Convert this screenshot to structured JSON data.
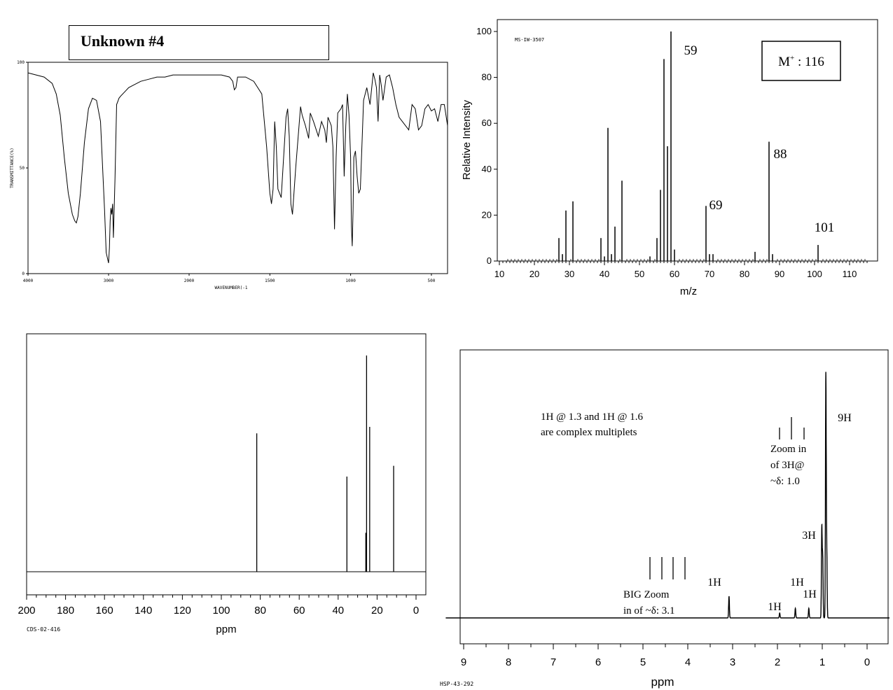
{
  "title_box": "Unknown #4",
  "chart_data": [
    {
      "id": "ir",
      "type": "line",
      "title": "",
      "xlabel": "WAVENUMBER(-1",
      "ylabel": "TRANSMITTANCE(%)",
      "xlim": [
        4000,
        400
      ],
      "ylim": [
        0,
        100
      ],
      "x_ticks": [
        4000,
        3000,
        2000,
        1500,
        1000,
        500
      ],
      "x_tick_labels": [
        "4000",
        "3000",
        "2000",
        "1500",
        "1000",
        "500"
      ],
      "y_ticks": [
        0,
        50,
        100
      ],
      "y_tick_labels": [
        "0",
        "50",
        "100"
      ],
      "series": [
        {
          "x": [
            4000,
            3900,
            3800,
            3700,
            3650,
            3600,
            3550,
            3500,
            3450,
            3420,
            3400,
            3380,
            3350,
            3300,
            3250,
            3200,
            3150,
            3100,
            3050,
            3030,
            3000,
            2990,
            2980,
            2970,
            2960,
            2950,
            2940,
            2920,
            2900,
            2880,
            2870,
            2850,
            2800,
            2750,
            2700,
            2600,
            2500,
            2400,
            2300,
            2200,
            2100,
            2000,
            1900,
            1800,
            1750,
            1730,
            1720,
            1710,
            1700,
            1650,
            1600,
            1550,
            1520,
            1500,
            1490,
            1480,
            1470,
            1460,
            1450,
            1430,
            1400,
            1390,
            1380,
            1370,
            1360,
            1340,
            1310,
            1300,
            1280,
            1260,
            1250,
            1230,
            1200,
            1180,
            1160,
            1150,
            1140,
            1120,
            1110,
            1100,
            1090,
            1080,
            1060,
            1050,
            1040,
            1030,
            1020,
            1010,
            1000,
            995,
            990,
            985,
            980,
            970,
            960,
            950,
            940,
            920,
            900,
            880,
            860,
            850,
            840,
            830,
            820,
            810,
            800,
            780,
            760,
            740,
            720,
            700,
            680,
            660,
            640,
            620,
            600,
            580,
            560,
            540,
            520,
            500,
            480,
            460,
            440,
            420,
            400
          ],
          "y": [
            95,
            94,
            93,
            90,
            85,
            75,
            55,
            38,
            28,
            25,
            24,
            27,
            38,
            62,
            78,
            83,
            82,
            72,
            30,
            10,
            5,
            12,
            25,
            31,
            28,
            33,
            17,
            45,
            80,
            82,
            83,
            84,
            86,
            88,
            89,
            91,
            92,
            93,
            93,
            94,
            94,
            94,
            94,
            94,
            93,
            91,
            87,
            88,
            93,
            93,
            91,
            85,
            60,
            38,
            33,
            40,
            72,
            60,
            40,
            36,
            74,
            78,
            65,
            33,
            28,
            50,
            79,
            75,
            70,
            64,
            76,
            72,
            65,
            72,
            68,
            62,
            74,
            70,
            60,
            21,
            55,
            76,
            78,
            80,
            46,
            70,
            85,
            75,
            55,
            22,
            13,
            30,
            55,
            58,
            46,
            38,
            40,
            82,
            88,
            80,
            95,
            92,
            88,
            72,
            94,
            89,
            82,
            93,
            94,
            88,
            80,
            74,
            72,
            70,
            68,
            80,
            78,
            68,
            70,
            78,
            80,
            77,
            78,
            72,
            80,
            80,
            70
          ]
        }
      ],
      "annotations": []
    },
    {
      "id": "ms",
      "type": "bar",
      "title": "",
      "code": "MS-IW-3507",
      "xlabel": "m/z",
      "ylabel": "Relative Intensity",
      "xlim": [
        10,
        115
      ],
      "ylim": [
        0,
        100
      ],
      "x_ticks": [
        10,
        20,
        30,
        40,
        50,
        60,
        70,
        80,
        90,
        100,
        110
      ],
      "x_tick_labels": [
        "10",
        "20",
        "30",
        "40",
        "50",
        "60",
        "70",
        "80",
        "90",
        "100",
        "110"
      ],
      "y_ticks": [
        0,
        20,
        40,
        60,
        80,
        100
      ],
      "y_tick_labels": [
        "0",
        "20",
        "40",
        "60",
        "80",
        "100"
      ],
      "x": [
        27,
        28,
        29,
        31,
        39,
        40,
        41,
        42,
        43,
        45,
        53,
        55,
        56,
        57,
        58,
        59,
        60,
        69,
        70,
        71,
        83,
        87,
        88,
        101
      ],
      "y": [
        10,
        3,
        22,
        26,
        10,
        2,
        58,
        3,
        15,
        35,
        2,
        10,
        31,
        88,
        50,
        100,
        5,
        24,
        3,
        3,
        4,
        52,
        3,
        7
      ],
      "peak_labels": [
        "59",
        "69",
        "88",
        "101"
      ],
      "annotations": [
        "M+ : 116"
      ]
    },
    {
      "id": "c13",
      "type": "bar",
      "title": "",
      "code": "CDS-02-416",
      "xlabel": "ppm",
      "xlim": [
        200,
        0
      ],
      "x_ticks": [
        200,
        180,
        160,
        140,
        120,
        100,
        80,
        60,
        40,
        20,
        0
      ],
      "x_tick_labels": [
        "200",
        "180",
        "160",
        "140",
        "120",
        "100",
        "80",
        "60",
        "40",
        "20",
        "0"
      ],
      "x": [
        81.8,
        35.5,
        25.8,
        25.4,
        23.8,
        11.5
      ],
      "y": [
        0.64,
        0.44,
        0.18,
        1.0,
        0.67,
        0.49
      ],
      "annotations": []
    },
    {
      "id": "h1",
      "type": "line",
      "title": "",
      "code": "HSP-43-292",
      "xlabel": "ppm",
      "xlim": [
        9.3,
        -0.4
      ],
      "x_ticks": [
        9,
        8,
        7,
        6,
        5,
        4,
        3,
        2,
        1,
        0
      ],
      "x_tick_labels": [
        "9",
        "8",
        "7",
        "6",
        "5",
        "4",
        "3",
        "2",
        "1",
        "0"
      ],
      "peaks": [
        {
          "ppm": 3.08,
          "height": 0.09
        },
        {
          "ppm": 1.95,
          "height": 0.02
        },
        {
          "ppm": 1.6,
          "height": 0.04
        },
        {
          "ppm": 1.3,
          "height": 0.04
        },
        {
          "ppm": 1.01,
          "height": 0.37
        },
        {
          "ppm": 0.99,
          "height": 0.24
        },
        {
          "ppm": 0.92,
          "height": 1.0
        },
        {
          "ppm": 0.9,
          "height": 0.26
        }
      ],
      "integration_labels": [
        "9H",
        "3H",
        "1H",
        "1H",
        "1H",
        "1H"
      ],
      "annotations": [
        "1H @ 1.3 and 1H @ 1.6",
        "are complex multiplets",
        "Zoom in",
        "of 3H@",
        "~δ: 1.0",
        "BIG Zoom",
        "in of ~δ: 3.1"
      ]
    }
  ]
}
